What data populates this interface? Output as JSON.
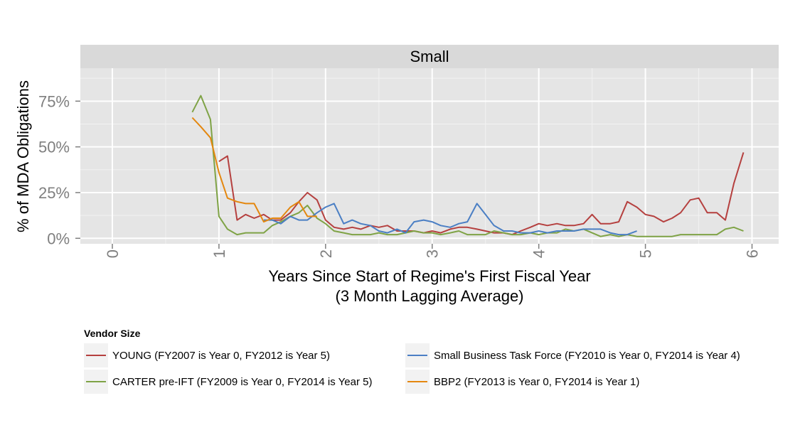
{
  "chart_data": {
    "type": "line",
    "facet_title": "Small",
    "xlabel_line1": "Years Since Start of Regime's First Fiscal Year",
    "xlabel_line2": "(3 Month Lagging Average)",
    "ylabel": "% of MDA Obligations",
    "xlim": [
      -0.3,
      6.25
    ],
    "ylim": [
      -3,
      93
    ],
    "x_ticks": [
      0,
      1,
      2,
      3,
      4,
      5,
      6
    ],
    "x_tick_labels": [
      "0",
      "1",
      "2",
      "3",
      "4",
      "5",
      "6"
    ],
    "y_ticks": [
      0,
      25,
      50,
      75
    ],
    "y_tick_labels": [
      "0%",
      "25%",
      "50%",
      "75%"
    ],
    "grid": true,
    "legend": {
      "title": "Vendor Size",
      "position": "bottom"
    },
    "series": [
      {
        "name": "YOUNG (FY2007 is Year 0, FY2012 is Year 5)",
        "color": "#b5403f",
        "x": [
          1.0,
          1.08,
          1.17,
          1.25,
          1.33,
          1.42,
          1.5,
          1.58,
          1.67,
          1.75,
          1.83,
          1.92,
          2.0,
          2.08,
          2.17,
          2.25,
          2.33,
          2.42,
          2.5,
          2.58,
          2.67,
          2.75,
          2.83,
          2.92,
          3.0,
          3.08,
          3.17,
          3.25,
          3.33,
          3.42,
          3.5,
          3.58,
          3.67,
          3.75,
          3.83,
          3.92,
          4.0,
          4.08,
          4.17,
          4.25,
          4.33,
          4.42,
          4.5,
          4.58,
          4.67,
          4.75,
          4.83,
          4.92,
          5.0,
          5.08,
          5.17,
          5.25,
          5.33,
          5.42,
          5.5,
          5.58,
          5.67,
          5.75,
          5.83,
          5.92
        ],
        "values": [
          42,
          45,
          10,
          13,
          11,
          13,
          10,
          10,
          14,
          20,
          25,
          21,
          10,
          6,
          5,
          6,
          5,
          7,
          6,
          7,
          4,
          4,
          4,
          3,
          4,
          3,
          5,
          6,
          6,
          5,
          4,
          3,
          3,
          2,
          4,
          6,
          8,
          7,
          8,
          7,
          7,
          8,
          13,
          8,
          8,
          9,
          20,
          17,
          13,
          12,
          9,
          11,
          14,
          21,
          22,
          14,
          14,
          10,
          30,
          47
        ]
      },
      {
        "name": "CARTER pre-IFT (FY2009 is Year 0, FY2014 is Year 5)",
        "color": "#7fa346",
        "x": [
          0.75,
          0.83,
          0.92,
          1.0,
          1.08,
          1.17,
          1.25,
          1.33,
          1.42,
          1.5,
          1.58,
          1.67,
          1.75,
          1.83,
          1.92,
          2.0,
          2.08,
          2.17,
          2.25,
          2.33,
          2.42,
          2.5,
          2.58,
          2.67,
          2.75,
          2.83,
          2.92,
          3.0,
          3.08,
          3.17,
          3.25,
          3.33,
          3.42,
          3.5,
          3.58,
          3.67,
          3.75,
          3.83,
          3.92,
          4.0,
          4.08,
          4.17,
          4.25,
          4.33,
          4.42,
          4.5,
          4.58,
          4.67,
          4.75,
          4.83,
          4.92,
          5.0,
          5.08,
          5.17,
          5.25,
          5.33,
          5.42,
          5.5,
          5.58,
          5.67,
          5.75,
          5.83,
          5.92
        ],
        "values": [
          69,
          78,
          65,
          12,
          5,
          2,
          3,
          3,
          3,
          7,
          9,
          12,
          14,
          18,
          11,
          8,
          4,
          3,
          2,
          2,
          2,
          3,
          2,
          2,
          3,
          4,
          3,
          3,
          2,
          3,
          4,
          2,
          2,
          2,
          4,
          3,
          2,
          2,
          3,
          2,
          3,
          3,
          5,
          4,
          5,
          3,
          1,
          2,
          1,
          2,
          1,
          1,
          1,
          1,
          1,
          2,
          2,
          2,
          2,
          2,
          5,
          6,
          4
        ]
      },
      {
        "name": "Small Business Task Force (FY2010 is Year 0, FY2014 is Year 4)",
        "color": "#4b7fc4",
        "x": [
          1.42,
          1.5,
          1.58,
          1.67,
          1.75,
          1.83,
          1.92,
          2.0,
          2.08,
          2.17,
          2.25,
          2.33,
          2.42,
          2.5,
          2.58,
          2.67,
          2.75,
          2.83,
          2.92,
          3.0,
          3.08,
          3.17,
          3.25,
          3.33,
          3.42,
          3.5,
          3.58,
          3.67,
          3.75,
          3.83,
          3.92,
          4.0,
          4.08,
          4.17,
          4.25,
          4.33,
          4.42,
          4.5,
          4.58,
          4.67,
          4.75,
          4.83,
          4.92
        ],
        "values": [
          10,
          10,
          8,
          12,
          10,
          10,
          14,
          17,
          19,
          8,
          10,
          8,
          7,
          4,
          3,
          5,
          3,
          9,
          10,
          9,
          7,
          6,
          8,
          9,
          19,
          13,
          7,
          4,
          4,
          3,
          3,
          4,
          3,
          4,
          4,
          4,
          5,
          5,
          5,
          3,
          2,
          2,
          4
        ]
      },
      {
        "name": "BBP2 (FY2013 is Year 0, FY2014 is Year 1)",
        "color": "#e4870f",
        "x": [
          0.75,
          0.83,
          0.92,
          1.0,
          1.08,
          1.17,
          1.25,
          1.33,
          1.42,
          1.5,
          1.58,
          1.67,
          1.75,
          1.83,
          1.92
        ],
        "values": [
          66,
          61,
          55,
          36,
          22,
          20,
          19,
          19,
          9,
          11,
          11,
          17,
          20,
          12,
          12
        ]
      }
    ]
  }
}
